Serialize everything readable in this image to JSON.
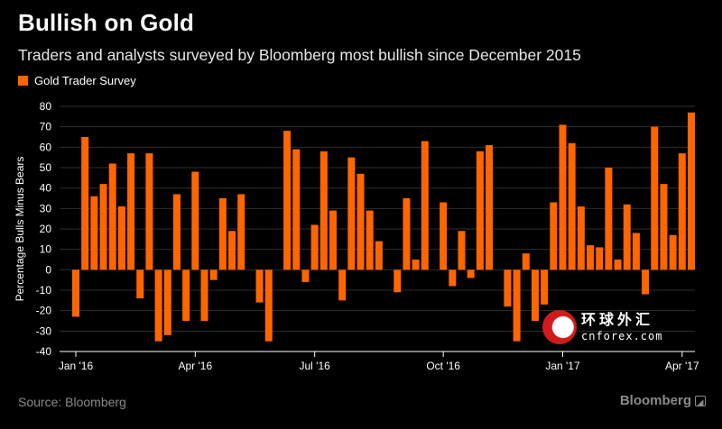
{
  "title": "Bullish on Gold",
  "subtitle": "Traders and analysts surveyed by Bloomberg most bullish since December 2015",
  "source": "Source: Bloomberg",
  "brand": "Bloomberg",
  "watermark": {
    "cn": "环球外汇",
    "en": "cnforex.com"
  },
  "colors": {
    "bar": "#ff6600",
    "background": "#000000",
    "grid": "#2e2e2e",
    "axis": "#ffffff",
    "text": "#ffffff"
  },
  "chart_data": {
    "type": "bar",
    "legend": [
      "Gold Trader Survey"
    ],
    "legend_position": "top-left",
    "ylabel": "Percentage Bulls Minus Bears",
    "ylim": [
      -40,
      80
    ],
    "yticks": [
      80,
      70,
      60,
      50,
      40,
      30,
      20,
      10,
      0,
      -10,
      -20,
      -30,
      -40
    ],
    "grid": true,
    "xtick_labels": [
      "Jan '16",
      "Apr '16",
      "Jul '16",
      "Oct '16",
      "Jan '17",
      "Apr '17"
    ],
    "xtick_bar_index": [
      0,
      13,
      26,
      40,
      53,
      66
    ],
    "series": [
      {
        "name": "Gold Trader Survey",
        "values": [
          -23,
          65,
          36,
          42,
          52,
          31,
          57,
          -14,
          57,
          -35,
          -32,
          37,
          -25,
          48,
          -25,
          -5,
          35,
          19,
          37,
          null,
          -16,
          -35,
          null,
          68,
          59,
          -6,
          22,
          58,
          29,
          -15,
          55,
          47,
          29,
          14,
          null,
          -11,
          35,
          5,
          63,
          null,
          33,
          -8,
          19,
          -4,
          58,
          61,
          null,
          -18,
          -35,
          8,
          -25,
          -17,
          33,
          71,
          62,
          31,
          12,
          11,
          50,
          5,
          32,
          18,
          -12,
          70,
          42,
          17,
          57,
          77
        ]
      }
    ]
  }
}
